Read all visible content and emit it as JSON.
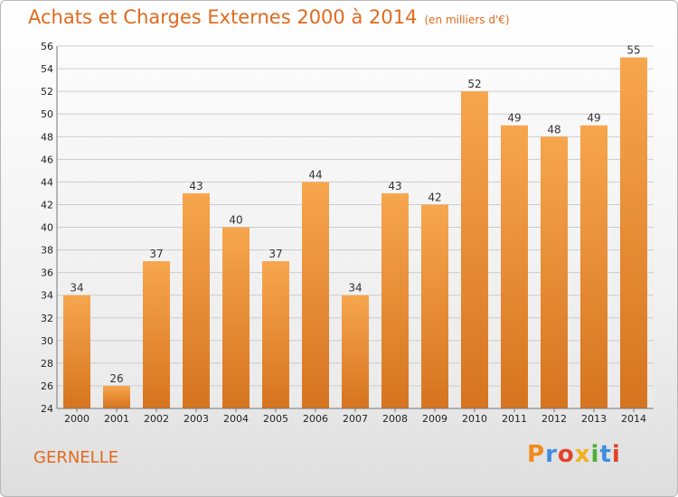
{
  "header": {
    "title": "Achats et Charges Externes 2000 à 2014",
    "subtitle": "(en milliers d'€)"
  },
  "footer": {
    "place": "GERNELLE",
    "logo": "Proxiti"
  },
  "colors": {
    "title": "#e06a1e",
    "bar_light": "#f7a64e",
    "bar_dark": "#d6741f",
    "grid": "#cccccc"
  },
  "chart_data": {
    "type": "bar",
    "title": "Achats et Charges Externes 2000 à 2014",
    "subtitle": "(en milliers d'€)",
    "categories": [
      "2000",
      "2001",
      "2002",
      "2003",
      "2004",
      "2005",
      "2006",
      "2007",
      "2008",
      "2009",
      "2010",
      "2011",
      "2012",
      "2013",
      "2014"
    ],
    "values": [
      34,
      26,
      37,
      43,
      40,
      37,
      44,
      34,
      43,
      42,
      52,
      49,
      48,
      49,
      55
    ],
    "ylim": [
      24,
      56
    ],
    "yticks": [
      24,
      26,
      28,
      30,
      32,
      34,
      36,
      38,
      40,
      42,
      44,
      46,
      48,
      50,
      52,
      54,
      56
    ],
    "grid": true,
    "data_labels": true
  }
}
